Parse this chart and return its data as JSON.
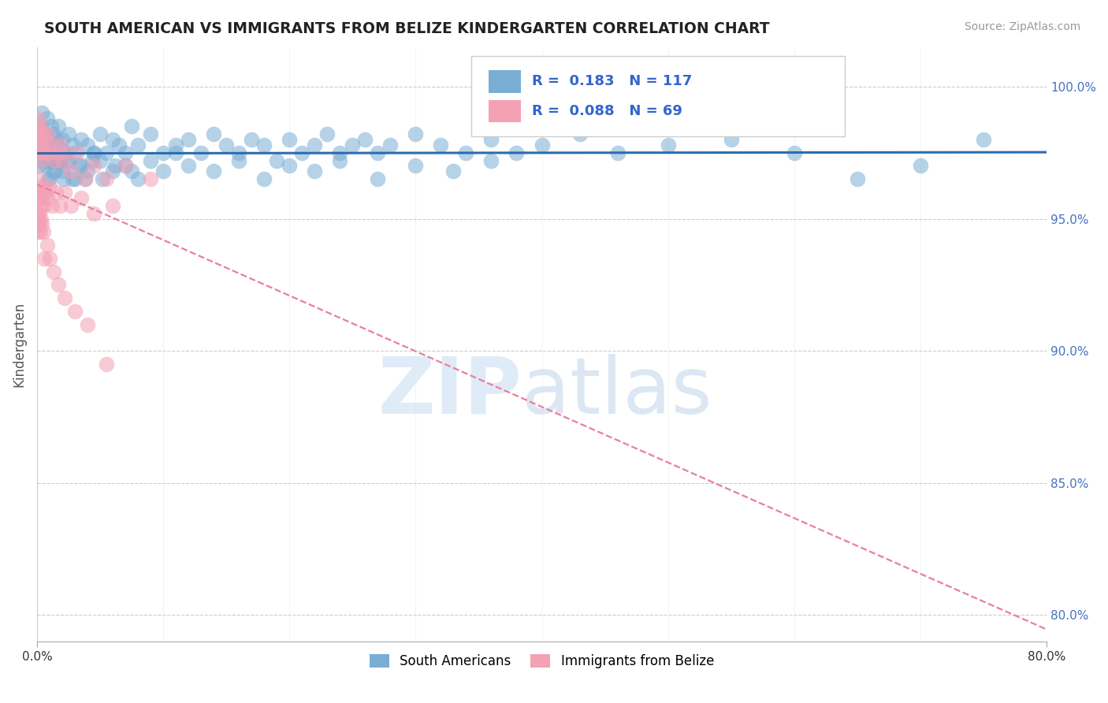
{
  "title": "SOUTH AMERICAN VS IMMIGRANTS FROM BELIZE KINDERGARTEN CORRELATION CHART",
  "source": "Source: ZipAtlas.com",
  "ylabel": "Kindergarten",
  "r_blue": 0.183,
  "n_blue": 117,
  "r_pink": 0.088,
  "n_pink": 69,
  "legend_labels": [
    "South Americans",
    "Immigrants from Belize"
  ],
  "blue_color": "#7aadd4",
  "pink_color": "#f4a0b5",
  "trend_blue": "#2b6cb0",
  "trend_pink": "#e87fa0",
  "yticks": [
    80.0,
    85.0,
    90.0,
    95.0,
    100.0
  ],
  "ytick_labels": [
    "80.0%",
    "85.0%",
    "90.0%",
    "95.0%",
    "100.0%"
  ],
  "xmin": 0.0,
  "xmax": 80.0,
  "ymin": 79.0,
  "ymax": 101.5,
  "blue_x": [
    0.1,
    0.15,
    0.2,
    0.25,
    0.3,
    0.35,
    0.4,
    0.5,
    0.6,
    0.7,
    0.8,
    0.9,
    1.0,
    1.1,
    1.2,
    1.3,
    1.4,
    1.5,
    1.6,
    1.7,
    1.8,
    2.0,
    2.2,
    2.5,
    2.8,
    3.0,
    3.5,
    4.0,
    4.5,
    5.0,
    5.5,
    6.0,
    6.5,
    7.0,
    7.5,
    8.0,
    9.0,
    10.0,
    11.0,
    12.0,
    13.0,
    14.0,
    15.0,
    16.0,
    17.0,
    18.0,
    19.0,
    20.0,
    21.0,
    22.0,
    23.0,
    24.0,
    25.0,
    26.0,
    27.0,
    28.0,
    30.0,
    32.0,
    34.0,
    36.0,
    38.0,
    40.0,
    43.0,
    46.0,
    50.0,
    55.0,
    60.0,
    65.0,
    70.0,
    75.0,
    1.0,
    1.2,
    1.4,
    1.6,
    1.8,
    2.0,
    2.2,
    2.5,
    3.0,
    3.5,
    4.0,
    4.5,
    5.0,
    6.0,
    7.0,
    8.0,
    9.0,
    10.0,
    11.0,
    12.0,
    14.0,
    16.0,
    18.0,
    20.0,
    22.0,
    24.0,
    27.0,
    30.0,
    33.0,
    36.0,
    0.3,
    0.5,
    0.7,
    0.9,
    1.1,
    1.3,
    1.5,
    1.8,
    2.1,
    2.4,
    2.8,
    3.3,
    3.8,
    4.4,
    5.2,
    6.2,
    7.5
  ],
  "blue_y": [
    98.5,
    97.5,
    97.0,
    98.0,
    97.5,
    98.5,
    99.0,
    97.8,
    98.2,
    97.5,
    98.8,
    98.0,
    97.5,
    98.5,
    97.8,
    98.2,
    97.5,
    98.0,
    97.8,
    98.5,
    97.2,
    98.0,
    97.5,
    98.2,
    97.8,
    97.5,
    98.0,
    97.8,
    97.5,
    98.2,
    97.5,
    98.0,
    97.8,
    97.5,
    98.5,
    97.8,
    98.2,
    97.5,
    97.8,
    98.0,
    97.5,
    98.2,
    97.8,
    97.5,
    98.0,
    97.8,
    97.2,
    98.0,
    97.5,
    97.8,
    98.2,
    97.5,
    97.8,
    98.0,
    97.5,
    97.8,
    98.2,
    97.8,
    97.5,
    98.0,
    97.5,
    97.8,
    98.2,
    97.5,
    97.8,
    98.0,
    97.5,
    96.5,
    97.0,
    98.0,
    96.5,
    97.2,
    96.8,
    97.5,
    97.2,
    96.8,
    97.5,
    97.2,
    96.5,
    97.0,
    96.8,
    97.5,
    97.2,
    96.8,
    97.0,
    96.5,
    97.2,
    96.8,
    97.5,
    97.0,
    96.8,
    97.2,
    96.5,
    97.0,
    96.8,
    97.2,
    96.5,
    97.0,
    96.8,
    97.2,
    97.5,
    97.2,
    97.0,
    96.5,
    97.2,
    96.8,
    97.5,
    97.2,
    96.5,
    97.0,
    96.5,
    97.0,
    96.5,
    97.2,
    96.5,
    97.0,
    96.8
  ],
  "pink_x": [
    0.05,
    0.08,
    0.1,
    0.12,
    0.15,
    0.18,
    0.2,
    0.25,
    0.3,
    0.35,
    0.4,
    0.5,
    0.6,
    0.7,
    0.8,
    0.9,
    1.0,
    1.2,
    1.4,
    1.6,
    1.8,
    2.0,
    2.3,
    2.7,
    3.2,
    3.8,
    4.5,
    5.5,
    7.0,
    9.0,
    0.1,
    0.15,
    0.2,
    0.25,
    0.3,
    0.35,
    0.4,
    0.5,
    0.6,
    0.7,
    0.8,
    1.0,
    1.2,
    1.5,
    1.8,
    2.2,
    2.7,
    3.5,
    4.5,
    6.0,
    0.05,
    0.08,
    0.1,
    0.12,
    0.15,
    0.2,
    0.25,
    0.3,
    0.4,
    0.5,
    0.6,
    0.8,
    1.0,
    1.3,
    1.7,
    2.2,
    3.0,
    4.0,
    5.5
  ],
  "pink_y": [
    98.2,
    98.8,
    97.8,
    98.5,
    97.5,
    98.2,
    97.8,
    98.5,
    97.2,
    98.0,
    97.5,
    98.2,
    97.5,
    98.0,
    97.5,
    98.2,
    97.5,
    97.8,
    97.2,
    97.5,
    97.8,
    97.2,
    97.5,
    96.8,
    97.5,
    96.5,
    97.0,
    96.5,
    97.0,
    96.5,
    96.0,
    96.5,
    95.8,
    96.2,
    95.5,
    96.0,
    95.8,
    96.2,
    95.5,
    96.0,
    95.8,
    96.2,
    95.5,
    96.0,
    95.5,
    96.0,
    95.5,
    95.8,
    95.2,
    95.5,
    94.8,
    95.2,
    94.5,
    95.0,
    94.8,
    95.2,
    94.5,
    95.0,
    94.8,
    94.5,
    93.5,
    94.0,
    93.5,
    93.0,
    92.5,
    92.0,
    91.5,
    91.0,
    89.5
  ]
}
